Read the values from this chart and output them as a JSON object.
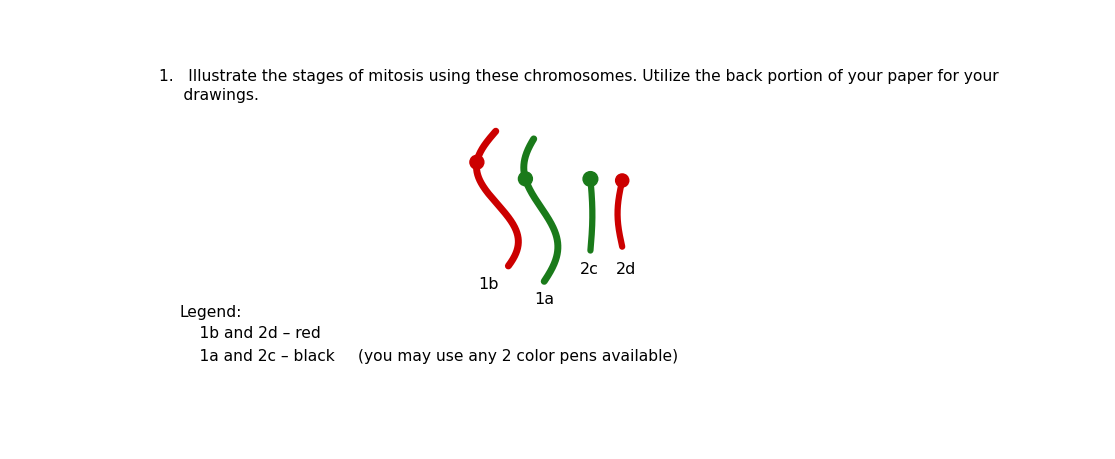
{
  "title_line1": "1.   Illustrate the stages of mitosis using these chromosomes. Utilize the back portion of your paper for your",
  "title_line2": "     drawings.",
  "legend_title": "Legend:",
  "legend_line1": "    1b and 2d – red",
  "legend_line2": "    1a and 2c – black",
  "legend_note": "         (you may use any 2 color pens available)",
  "color_red": "#cc0000",
  "color_green": "#1a7a1a",
  "background": "#ffffff",
  "label_1b": "1b",
  "label_1a": "1a",
  "label_2c": "2c",
  "label_2d": "2d",
  "figw": 11.15,
  "figh": 4.6,
  "dpi": 100
}
